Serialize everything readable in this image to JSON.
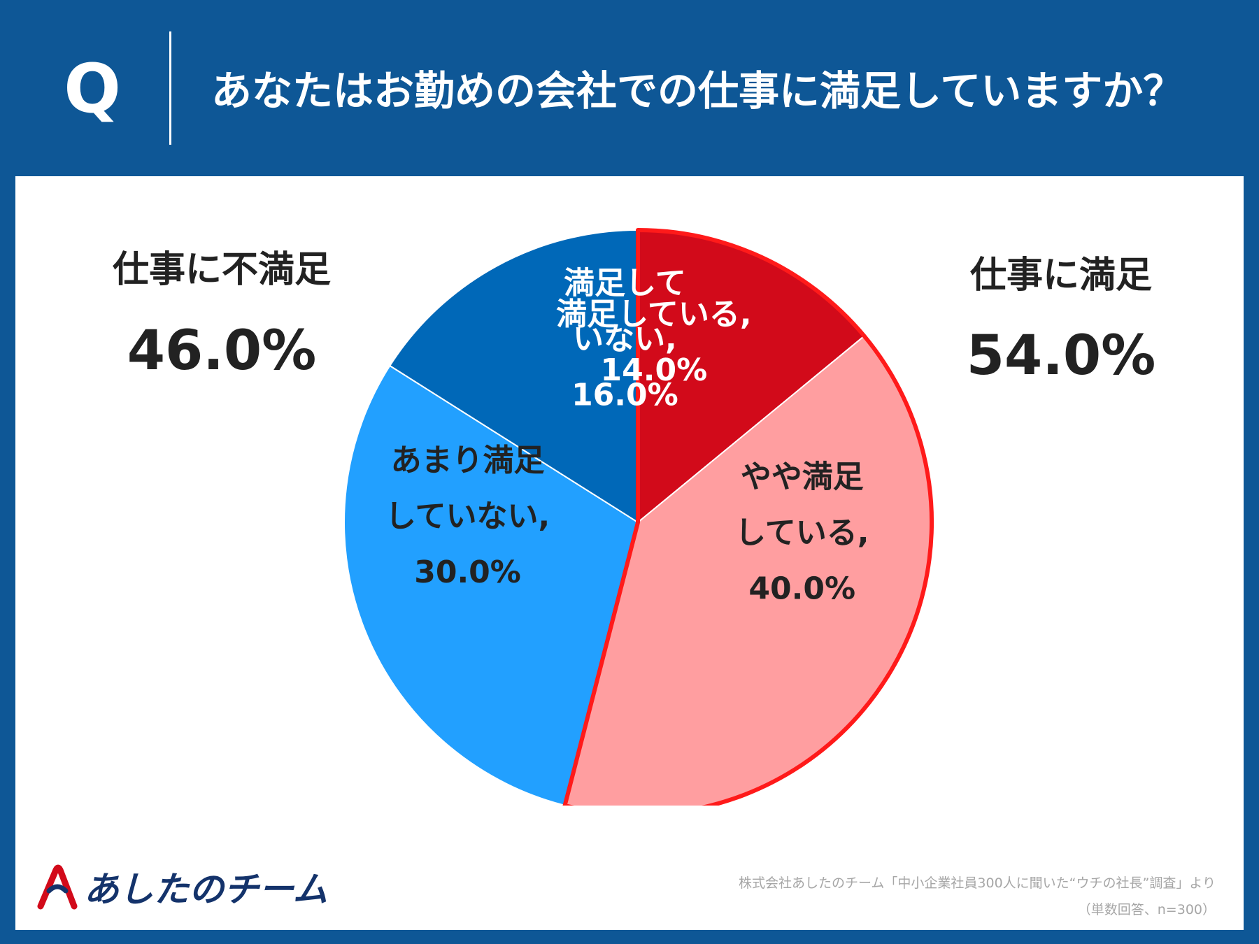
{
  "header": {
    "q_mark": "Q",
    "question": "あなたはお勤めの会社での仕事に満足していますか？"
  },
  "groups": {
    "dissatisfied": {
      "label": "仕事に不満足",
      "value": "46.0%"
    },
    "satisfied": {
      "label": "仕事に満足",
      "value": "54.0%"
    }
  },
  "chart_data": {
    "type": "pie",
    "start_angle": "12 o'clock",
    "direction": "clockwise",
    "slices": [
      {
        "lines": [
          "満足している,",
          "14.0%"
        ],
        "value": 14.0,
        "color": "#d20a1a",
        "text_color": "#ffffff"
      },
      {
        "lines": [
          "やや満足",
          "している,",
          "40.0%"
        ],
        "value": 40.0,
        "color": "#ff9ea0",
        "text_color": "#222222"
      },
      {
        "lines": [
          "あまり満足",
          "していない,",
          "30.0%"
        ],
        "value": 30.0,
        "color": "#22a0ff",
        "text_color": "#222222"
      },
      {
        "lines": [
          "満足して",
          "いない,",
          "16.0%"
        ],
        "value": 16.0,
        "color": "#0068b8",
        "text_color": "#ffffff"
      }
    ]
  },
  "logo": {
    "text": "あしたのチーム",
    "colors": [
      "#d20a1a",
      "#14336b"
    ]
  },
  "footer": {
    "source": "株式会社あしたのチーム「中小企業社員300人に聞いた“ウチの社長”調査」より",
    "note": "（単数回答、n=300）"
  },
  "colors": {
    "header_bg": "#0e5796",
    "panel_bg": "#ffffff",
    "satisfied_outline": "#ff1a1a"
  }
}
